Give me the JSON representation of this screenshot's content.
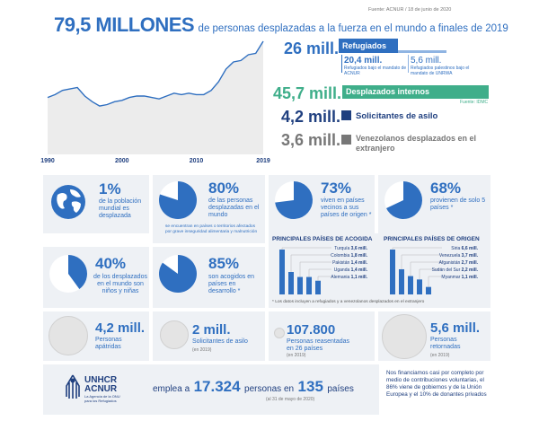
{
  "header": {
    "source": "Fuente: ACNUR / 18 de junio de 2020",
    "big_number": "79,5 MILLONES",
    "subtitle": "de personas desplazadas a la fuerza en el mundo a finales de 2019"
  },
  "chart_data": {
    "type": "area",
    "title": "",
    "x": [
      1990,
      1991,
      1992,
      1993,
      1994,
      1995,
      1996,
      1997,
      1998,
      1999,
      2000,
      2001,
      2002,
      2003,
      2004,
      2005,
      2006,
      2007,
      2008,
      2009,
      2010,
      2011,
      2012,
      2013,
      2014,
      2015,
      2016,
      2017,
      2018,
      2019
    ],
    "values": [
      40,
      42,
      45,
      46,
      47,
      41,
      37,
      34,
      35,
      37,
      38,
      40,
      41,
      41,
      40,
      39,
      41,
      43,
      42,
      43,
      42,
      42,
      45,
      51,
      60,
      65,
      66,
      70,
      71,
      79.5
    ],
    "tick_labels": [
      "1990",
      "2000",
      "2010",
      "2019"
    ],
    "ylim": [
      0,
      82
    ],
    "color": "#2f6fc0",
    "fill": "#ececec"
  },
  "stats": {
    "refugees": {
      "value": "26 mill.",
      "label": "Refugiados",
      "sub1_value": "20,4 mill.",
      "sub1_label": "Refugiados bajo el mandato de ACNUR",
      "sub2_value": "5,6 mill.",
      "sub2_label": "Refugiados palestinos bajo el mandato de UNRWA",
      "color": "#2f6fc0"
    },
    "idp": {
      "value": "45,7 mill.",
      "label": "Desplazados internos",
      "source": "Fuente: IDMC",
      "color": "#3fae8a"
    },
    "asylum": {
      "value": "4,2 mill.",
      "label": "Solicitantes de asilo",
      "color": "#1f3f7f"
    },
    "venezuelans": {
      "value": "3,6 mill.",
      "label": "Venezolanos desplazados en el extranjero",
      "color": "#777777"
    }
  },
  "row1": [
    {
      "value": "1%",
      "text": "de la población mundial es desplazada"
    },
    {
      "value": "80%",
      "text": "de las personas desplazadas en el mundo",
      "note": "se encuentran en países o territorios afectados por grave inseguridad alimentaria y malnutrición"
    },
    {
      "value": "73%",
      "text": "viven en países vecinos a sus países de origen *"
    },
    {
      "value": "68%",
      "text": "provienen de solo 5 países *"
    }
  ],
  "row2": [
    {
      "value": "40%",
      "text": "de los desplazados en el mundo son niños y niñas"
    },
    {
      "value": "85%",
      "text": "son acogidos en países en desarrollo *"
    }
  ],
  "host_chart": {
    "title": "PRINCIPALES PAÍSES DE ACOGIDA",
    "items": [
      {
        "country": "Turquía",
        "value": "3,6 mill.",
        "n": 3.6
      },
      {
        "country": "Colombia",
        "value": "1,8 mill.",
        "n": 1.8
      },
      {
        "country": "Pakistán",
        "value": "1,4 mill.",
        "n": 1.4
      },
      {
        "country": "Uganda",
        "value": "1,4 mill.",
        "n": 1.4
      },
      {
        "country": "Alemania",
        "value": "1,1 mill.",
        "n": 1.1
      }
    ]
  },
  "origin_chart": {
    "title": "PRINCIPALES PAÍSES DE ORIGEN",
    "items": [
      {
        "country": "Siria",
        "value": "6,6 mill.",
        "n": 6.6
      },
      {
        "country": "Venezuela",
        "value": "3,7 mill.",
        "n": 3.7
      },
      {
        "country": "Afganistán",
        "value": "2,7 mill.",
        "n": 2.7
      },
      {
        "country": "Sudán del Sur",
        "value": "2,2 mill.",
        "n": 2.2
      },
      {
        "country": "Myanmar",
        "value": "1,1 mill.",
        "n": 1.1
      }
    ]
  },
  "footnote": "* Los datos incluyen a refugiados y a venezolanos desplazados en el extranjero",
  "row3": [
    {
      "value": "4,2 mill.",
      "text": "Personas apátridas"
    },
    {
      "value": "2 mill.",
      "text": "Solicitantes de asilo",
      "year": "(en 2019)"
    },
    {
      "value": "107.800",
      "text": "Personas reasentadas en 26 países",
      "year": "(en 2019)"
    },
    {
      "value": "5,6 mill.",
      "text": "Personas retornadas",
      "year": "(en 2019)"
    }
  ],
  "footer": {
    "logo_text1": "UNHCR",
    "logo_text2": "ACNUR",
    "logo_sub": "La Agencia de la ONU para los Refugiados",
    "employs_pre": "emplea a",
    "employs_num": "17.324",
    "employs_mid": "personas en",
    "employs_countries": "135",
    "employs_post": "países",
    "employs_date": "(al 31 de mayo de 2020)",
    "funding": "Nos financiamos casi por completo por medio de contribuciones voluntarias, el 86% viene de gobiernos y de la Unión Europea y el 10% de donantes privados"
  }
}
